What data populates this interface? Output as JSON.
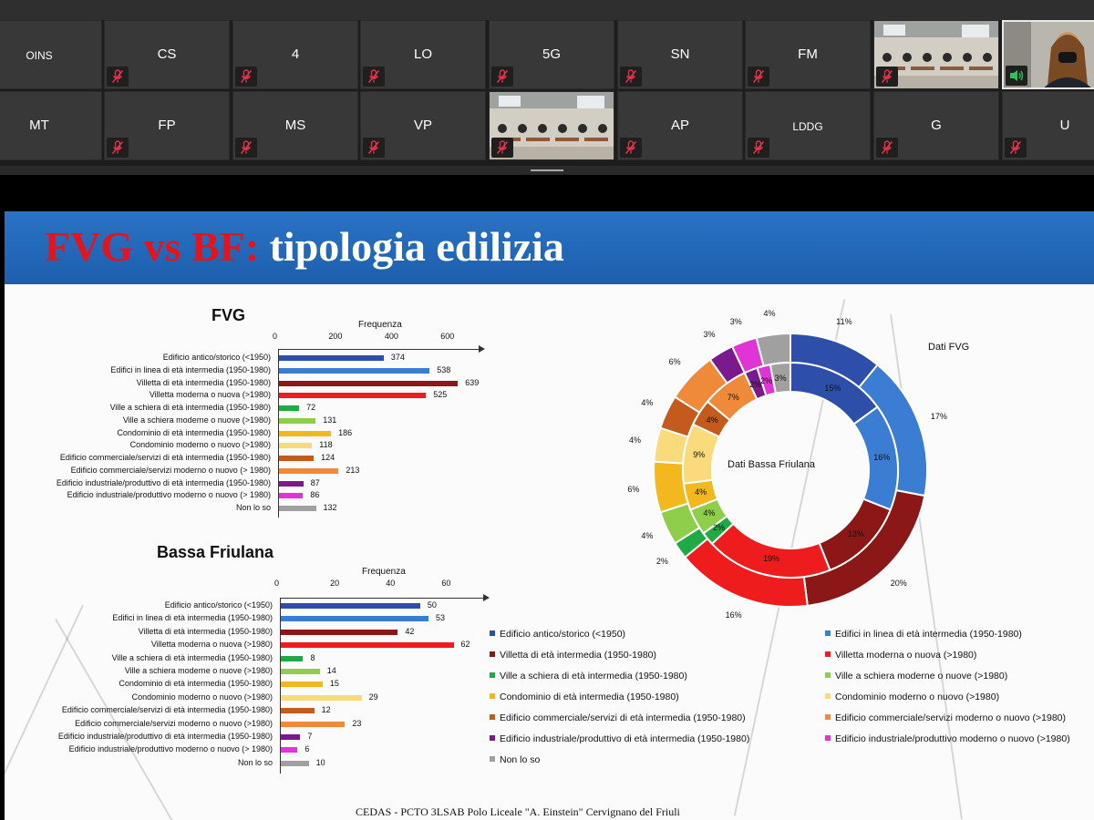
{
  "participants_row1": [
    {
      "name": "OINS",
      "muted": false
    },
    {
      "name": "CS",
      "muted": true
    },
    {
      "name": "4",
      "muted": true
    },
    {
      "name": "LO",
      "muted": true
    },
    {
      "name": "5G",
      "muted": true
    },
    {
      "name": "SN",
      "muted": true
    },
    {
      "name": "FM",
      "muted": true
    },
    {
      "name": "",
      "muted": true,
      "video": true
    },
    {
      "name": "",
      "muted": false,
      "video": true,
      "active": true
    }
  ],
  "participants_row2": [
    {
      "name": "MT",
      "muted": false
    },
    {
      "name": "FP",
      "muted": true
    },
    {
      "name": "MS",
      "muted": true
    },
    {
      "name": "VP",
      "muted": true
    },
    {
      "name": "",
      "muted": true,
      "video": true
    },
    {
      "name": "AP",
      "muted": true
    },
    {
      "name": "LDDG",
      "muted": true
    },
    {
      "name": "G",
      "muted": true
    },
    {
      "name": "U",
      "muted": true
    }
  ],
  "slide": {
    "title_red": "FVG vs BF:",
    "title_white": " tipologia edilizia",
    "footer": "CEDAS - PCTO 3LSAB Polo Liceale \"A. Einstein\" Cervignano del Friuli"
  },
  "chart_data": [
    {
      "type": "bar",
      "title": "FVG",
      "xlabel": "Frequenza",
      "xlim": [
        0,
        700
      ],
      "ticks": [
        "0",
        "200",
        "400",
        "600"
      ],
      "categories": [
        "Edificio antico/storico (<1950)",
        "Edifici in linea di età intermedia (1950-1980)",
        "Villetta di età intermedia (1950-1980)",
        "Villetta moderna o nuova (>1980)",
        "Ville a schiera di età intermedia (1950-1980)",
        "Ville a schiera moderne o nuove (>1980)",
        "Condominio di età intermedia (1950-1980)",
        "Condominio moderno o nuovo (>1980)",
        "Edificio commerciale/servizi di età intermedia (1950-1980)",
        "Edificio commerciale/servizi moderno o nuovo (> 1980)",
        "Edificio industriale/produttivo di età intermedia (1950-1980)",
        "Edificio industriale/produttivo moderno o nuovo (> 1980)",
        "Non lo so"
      ],
      "values": [
        374,
        538,
        639,
        525,
        72,
        131,
        186,
        118,
        124,
        213,
        87,
        86,
        132
      ],
      "colors": [
        "#2e4fa9",
        "#3c7dd4",
        "#8c1717",
        "#ee1c1c",
        "#1faa45",
        "#8fce4a",
        "#f2b81e",
        "#f9db7c",
        "#c45a1b",
        "#f08a3b",
        "#7a1a8c",
        "#e034d6",
        "#a0a0a0"
      ]
    },
    {
      "type": "bar",
      "title": "Bassa Friulana",
      "xlabel": "Frequenza",
      "xlim": [
        0,
        70
      ],
      "ticks": [
        "0",
        "20",
        "40",
        "60"
      ],
      "categories": [
        "Edificio antico/storico (<1950)",
        "Edifici in linea di età intermedia (1950-1980)",
        "Villetta di età intermedia (1950-1980)",
        "Villetta moderna o nuova (>1980)",
        "Ville a schiera di età intermedia (1950-1980)",
        "Ville a schiera moderne o nuove (>1980)",
        "Condominio di età intermedia (1950-1980)",
        "Condominio moderno o nuovo (>1980)",
        "Edificio commerciale/servizi di età intermedia (1950-1980)",
        "Edificio commerciale/servizi moderno o nuovo (>1980)",
        "Edificio industriale/produttivo di età intermedia (1950-1980)",
        "Edificio industriale/produttivo moderno o nuovo (> 1980)",
        "Non lo so"
      ],
      "values": [
        50,
        53,
        42,
        62,
        8,
        14,
        15,
        29,
        12,
        23,
        7,
        6,
        10
      ],
      "colors": [
        "#2e4fa9",
        "#3c7dd4",
        "#8c1717",
        "#ee1c1c",
        "#1faa45",
        "#8fce4a",
        "#f2b81e",
        "#f9db7c",
        "#c45a1b",
        "#f08a3b",
        "#7a1a8c",
        "#e034d6",
        "#a0a0a0"
      ]
    },
    {
      "type": "pie",
      "subtype": "doughnut",
      "rings": [
        {
          "name": "Dati FVG",
          "values": [
            11,
            17,
            20,
            16,
            2,
            4,
            6,
            4,
            4,
            6,
            3,
            3,
            4
          ],
          "labels": [
            "11%",
            "17%",
            "20%",
            "16%",
            "2%",
            "4%",
            "6%",
            "4%",
            "4%",
            "6%",
            "3%",
            "3%",
            "4%"
          ]
        },
        {
          "name": "Dati Bassa Friulana",
          "values": [
            15,
            16,
            13,
            19,
            2,
            4,
            4,
            9,
            4,
            7,
            2,
            2,
            3
          ],
          "labels": [
            "15%",
            "16%",
            "13%",
            "19%",
            "2%",
            "4%",
            "4%",
            "9%",
            "4%",
            "7%",
            "2%",
            "2%",
            "3%"
          ]
        }
      ],
      "legend": [
        "Edificio antico/storico (<1950)",
        "Edifici in linea di età intermedia (1950-1980)",
        "Villetta di età intermedia (1950-1980)",
        "Villetta moderna o nuova (>1980)",
        "Ville a schiera di età intermedia (1950-1980)",
        "Ville a schiera moderne o nuove (>1980)",
        "Condominio di età intermedia (1950-1980)",
        "Condominio moderno o nuovo (>1980)",
        "Edificio commerciale/servizi di età intermedia (1950-1980)",
        "Edificio commerciale/servizi moderno o nuovo (>1980)",
        "Edificio industriale/produttivo di età intermedia (1950-1980)",
        "Edificio industriale/produttivo moderno o nuovo (>1980)",
        "Non lo so"
      ],
      "legend_placement": "bottom",
      "colors": [
        "#2e4fa9",
        "#3c7dd4",
        "#8c1717",
        "#ee1c1c",
        "#1faa45",
        "#8fce4a",
        "#f2b81e",
        "#f9db7c",
        "#c45a1b",
        "#f08a3b",
        "#7a1a8c",
        "#e034d6",
        "#a0a0a0"
      ]
    }
  ]
}
